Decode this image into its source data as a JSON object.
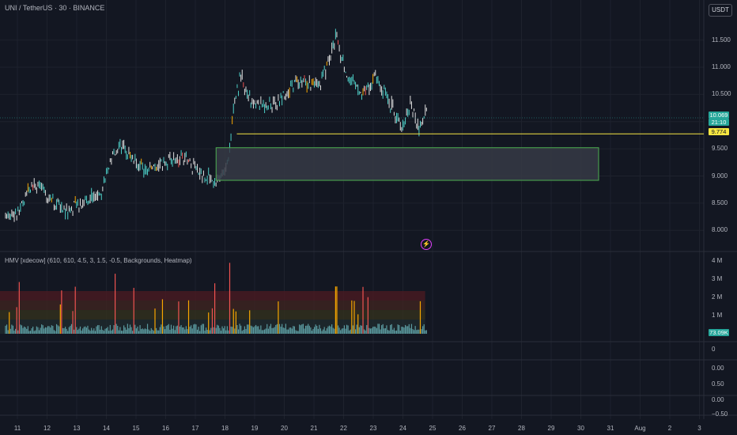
{
  "header": {
    "title": "UNI / TetherUS · 30 · BINANCE",
    "currency": "USDT",
    "indicator_title": "HMV [xdecow] (610, 610, 4.5, 3, 1.5, -0.5, Backgrounds, Heatmap)"
  },
  "price_axis": [
    "11.500",
    "11.000",
    "10.500",
    "9.500",
    "9.000",
    "8.500",
    "8.000"
  ],
  "volume_axis": [
    "4 M",
    "3 M",
    "2 M",
    "1 M"
  ],
  "osc_axis": [
    "0",
    "0.00",
    "0.50",
    "0.00",
    "−0.50"
  ],
  "time_axis": [
    "11",
    "12",
    "13",
    "14",
    "15",
    "16",
    "17",
    "18",
    "19",
    "20",
    "21",
    "22",
    "23",
    "24",
    "25",
    "26",
    "27",
    "28",
    "29",
    "30",
    "31",
    "Aug",
    "2",
    "3"
  ],
  "tags": {
    "last_price": "10.069",
    "countdown": "21:10",
    "level": "9.774",
    "last_volume": "73.09K"
  },
  "lightning_icon": "⚡",
  "colors": {
    "up": "#4dd0c8",
    "down": "#e0e0e0",
    "level_line": "#f5e642",
    "zone_border": "#4caf50",
    "zone_fill": "#363a45",
    "tag_price": "#26a69a",
    "tag_level": "#f5e642",
    "tag_volume": "#26a69a"
  },
  "chart_data": {
    "type": "line",
    "title": "UNI / TetherUS · 30 · BINANCE",
    "x": [
      "11",
      "12",
      "13",
      "14",
      "15",
      "16",
      "17",
      "18",
      "19",
      "20",
      "21",
      "22",
      "23",
      "24",
      "24.7"
    ],
    "series": [
      {
        "values": [
          8.3,
          8.9,
          8.4,
          8.7,
          9.5,
          9.1,
          9.2,
          8.9,
          10.2,
          10.3,
          10.7,
          11.2,
          10.8,
          10.3,
          10.069
        ]
      }
    ],
    "zone": {
      "from_x": "17.7",
      "to_x": "30.6",
      "y_low": 8.92,
      "y_high": 9.52
    },
    "level": 9.774,
    "ylim": [
      7.8,
      11.8
    ],
    "volume_ylim": [
      0,
      4000000
    ],
    "grid": true
  }
}
